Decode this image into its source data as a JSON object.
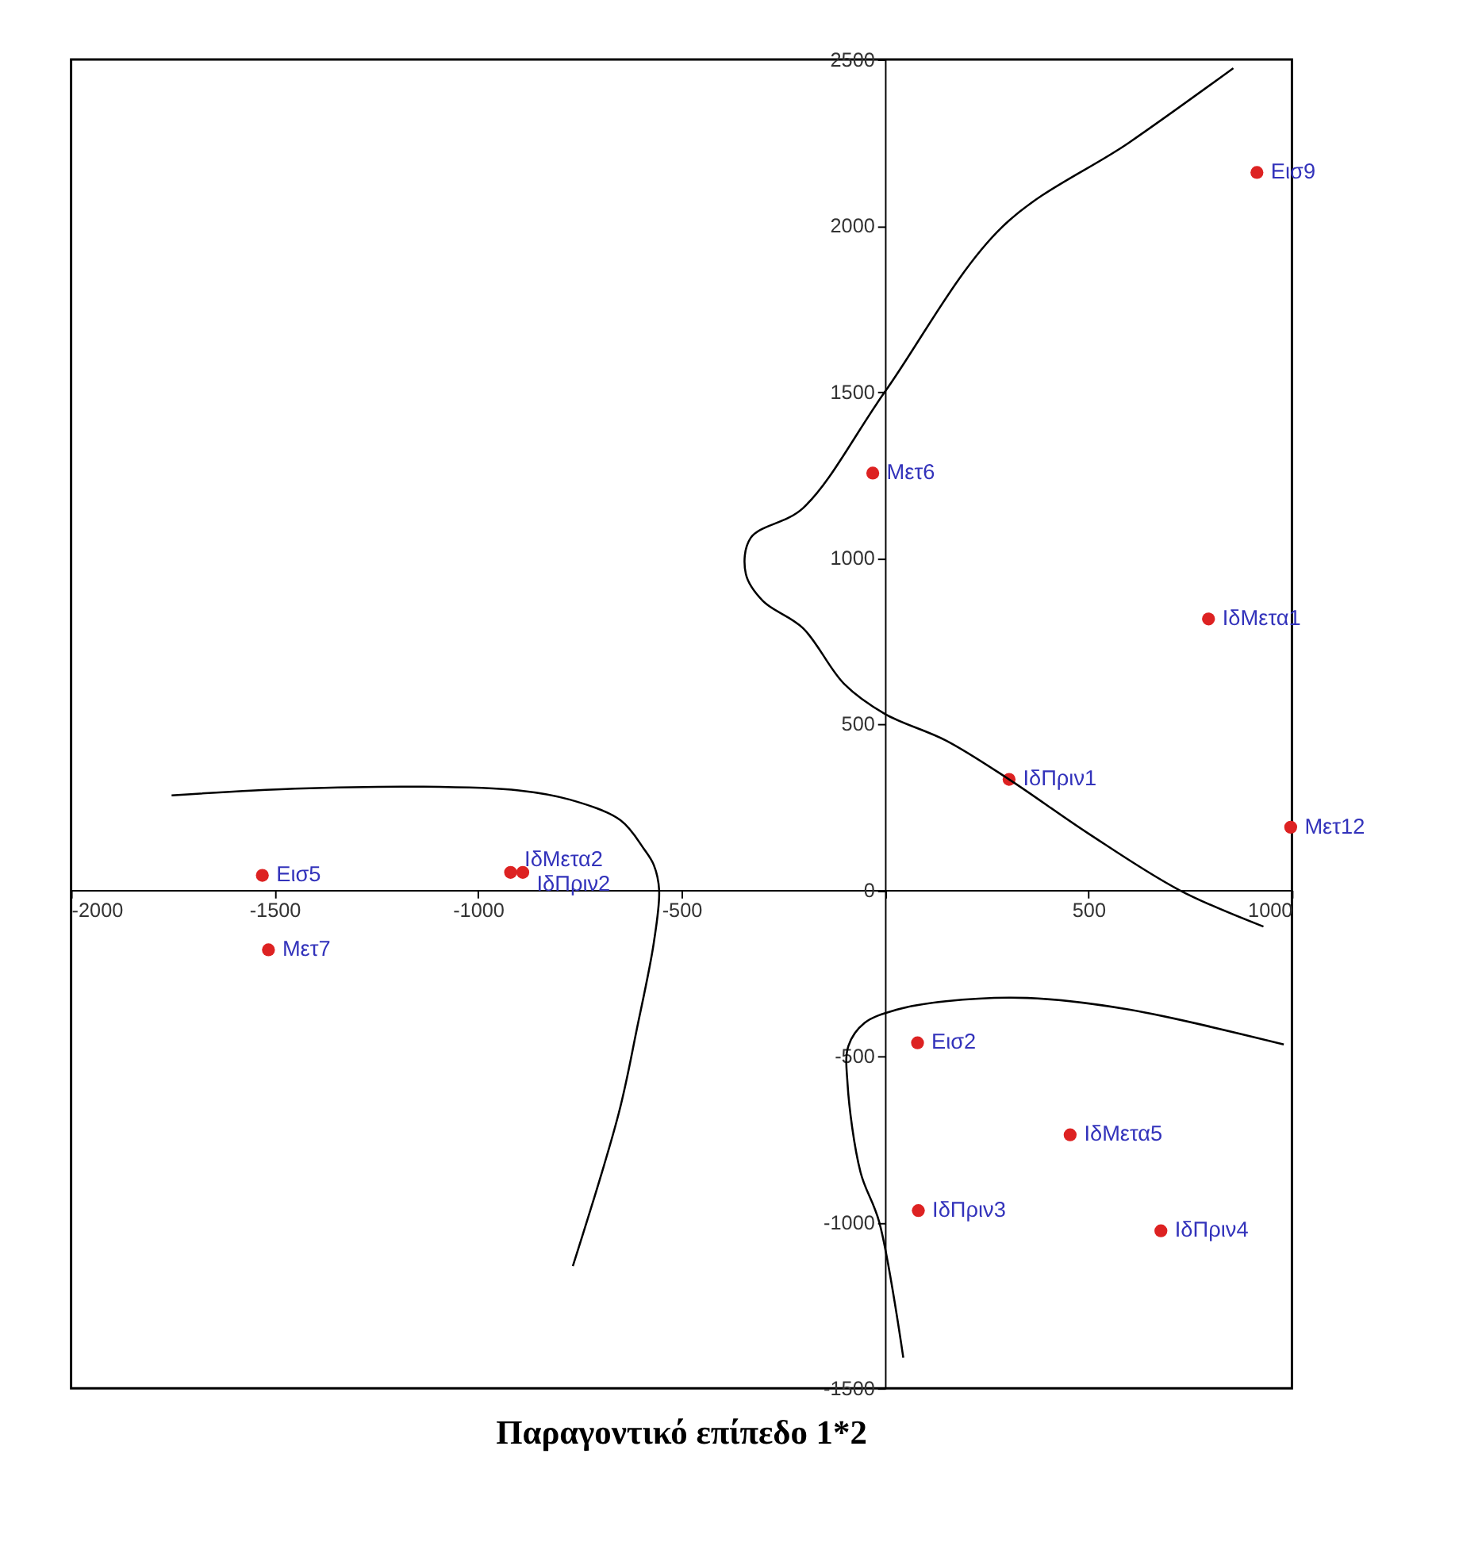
{
  "chart_data": {
    "type": "scatter",
    "title": "Παραγοντικό επίπεδο 1*2",
    "xlim": [
      -2000,
      1000
    ],
    "ylim": [
      -1500,
      2500
    ],
    "xticks": [
      -2000,
      -1500,
      -1000,
      -500,
      {
        "value": 0,
        "label": null
      },
      500,
      1000
    ],
    "yticks": [
      -1500,
      -1000,
      -500,
      0,
      500,
      1000,
      1500,
      2000,
      2500
    ],
    "grid": false,
    "legend": false,
    "series": [
      {
        "marker": "circle",
        "color": "#dd2222",
        "x": [
          914,
          -30,
          795,
          305,
          997,
          -1530,
          -920,
          -890,
          -1515,
          80,
          455,
          82,
          678
        ],
        "values": [
          2160,
          1255,
          816,
          333,
          189,
          44,
          53,
          53,
          -180,
          -460,
          -737,
          -965,
          -1026
        ]
      },
      {
        "type": "line",
        "color": "#000000",
        "x": [
          930,
          723,
          500,
          305,
          150,
          0,
          -100,
          -202,
          -300,
          -342,
          -330,
          -202,
          0,
          288,
          600,
          856
        ],
        "values": [
          -110,
          0,
          170,
          333,
          450,
          530,
          620,
          789,
          870,
          952,
          1060,
          1149,
          1500,
          1996,
          2250,
          2474
        ]
      },
      {
        "type": "line",
        "color": "#000000",
        "x": [
          -1753,
          -1450,
          -1140,
          -900,
          -774,
          -650,
          -592,
          -568,
          -555,
          -568,
          -610,
          -654,
          -767
        ],
        "values": [
          285,
          305,
          311,
          300,
          272,
          210,
          123,
          75,
          0,
          -158,
          -420,
          -671,
          -1132
        ]
      },
      {
        "type": "line",
        "color": "#000000",
        "x": [
          45,
          -14,
          -60,
          -92,
          -90,
          -50,
          30,
          150,
          350,
          600,
          980
        ],
        "values": [
          -1408,
          -1000,
          -850,
          -583,
          -470,
          -400,
          -360,
          -335,
          -325,
          -360,
          -465
        ]
      }
    ],
    "annotations": [
      {
        "text": "Εισ9",
        "x": 914,
        "y": 2160
      },
      {
        "text": "Μετ6",
        "x": -30,
        "y": 1255
      },
      {
        "text": "ΙδΜετα1",
        "x": 795,
        "y": 816
      },
      {
        "text": "ΙδΠριν1",
        "x": 305,
        "y": 333
      },
      {
        "text": "Μετ12",
        "x": 997,
        "y": 189
      },
      {
        "text": "Εισ5",
        "x": -1530,
        "y": 44
      },
      {
        "text": "ΙδΜετα2",
        "x": -920,
        "y": 53
      },
      {
        "text": "ΙδΠριν2",
        "x": -890,
        "y": 53
      },
      {
        "text": "Μετ7",
        "x": -1515,
        "y": -180
      },
      {
        "text": "Εισ2",
        "x": 80,
        "y": -460
      },
      {
        "text": "ΙδΜετα5",
        "x": 455,
        "y": -737
      },
      {
        "text": "ΙδΠριν3",
        "x": 82,
        "y": -965
      },
      {
        "text": "ΙδΠριν4",
        "x": 678,
        "y": -1026
      }
    ]
  }
}
